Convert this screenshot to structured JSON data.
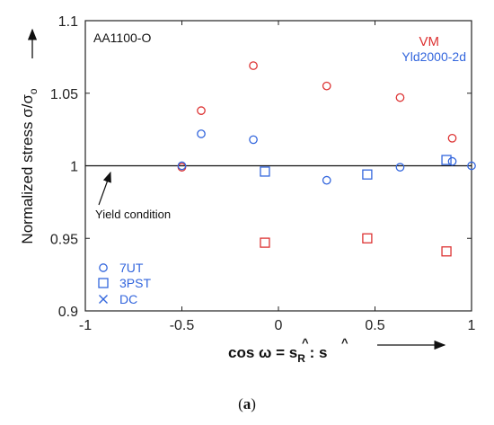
{
  "caption": {
    "open": "(",
    "letter": "a",
    "close": ")"
  },
  "chart_data": {
    "type": "scatter",
    "title": "AA1100-O",
    "xlabel": {
      "prefix": "cos ω = ",
      "hat1": "^",
      "s1": "s",
      "sub": "R",
      "colon": " : ",
      "hat2": "^",
      "s2": "s"
    },
    "ylabel": {
      "main": "Normalized stress  σ/σ",
      "sub": "o"
    },
    "xlim": [
      -1,
      1
    ],
    "ylim": [
      0.9,
      1.1
    ],
    "xticks": [
      -1,
      -0.5,
      0,
      0.5,
      1
    ],
    "xtick_labels": [
      "-1",
      "-0.5",
      "0",
      "0.5",
      "1"
    ],
    "yticks": [
      0.9,
      0.95,
      1,
      1.05,
      1.1
    ],
    "ytick_labels": [
      "0.9",
      "0.95",
      "1",
      "1.05",
      "1.1"
    ],
    "reference_line": {
      "y": 1.0,
      "label": "Yield condition"
    },
    "models": [
      {
        "name": "VM",
        "color": "#dd3333"
      },
      {
        "name": "Yld2000-2d",
        "color": "#3366dd"
      }
    ],
    "legend": [
      {
        "marker": "circle",
        "label": "7UT"
      },
      {
        "marker": "square",
        "label": "3PST"
      },
      {
        "marker": "cross",
        "label": "DC"
      }
    ],
    "series": [
      {
        "model": "VM",
        "marker": "circle",
        "points": [
          [
            -0.5,
            0.999
          ],
          [
            -0.4,
            1.038
          ],
          [
            -0.13,
            1.069
          ],
          [
            0.25,
            1.055
          ],
          [
            0.63,
            1.047
          ],
          [
            0.9,
            1.019
          ]
        ]
      },
      {
        "model": "VM",
        "marker": "square",
        "points": [
          [
            -0.07,
            0.947
          ],
          [
            0.46,
            0.95
          ],
          [
            0.87,
            0.941
          ]
        ]
      },
      {
        "model": "Yld2000-2d",
        "marker": "circle",
        "points": [
          [
            -0.5,
            1.0
          ],
          [
            -0.4,
            1.022
          ],
          [
            -0.13,
            1.018
          ],
          [
            0.25,
            0.99
          ],
          [
            0.63,
            0.999
          ],
          [
            0.9,
            1.003
          ],
          [
            1.0,
            1.0
          ]
        ]
      },
      {
        "model": "Yld2000-2d",
        "marker": "square",
        "points": [
          [
            -0.07,
            0.996
          ],
          [
            0.46,
            0.994
          ],
          [
            0.87,
            1.004
          ]
        ]
      }
    ],
    "grid": false,
    "legend_placement": "bottom-left"
  }
}
